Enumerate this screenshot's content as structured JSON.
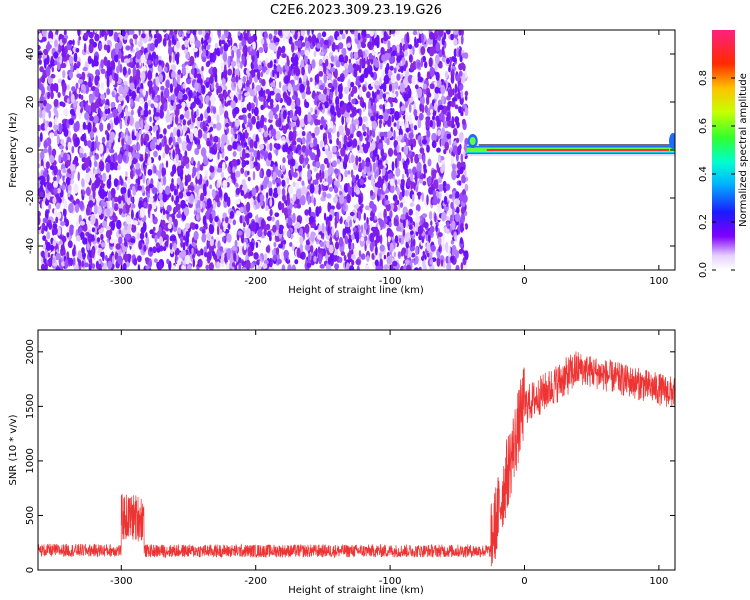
{
  "title": "C2E6.2023.309.23.19.G26",
  "chart_data": [
    {
      "type": "heatmap",
      "title": "",
      "xlabel": "Height of straight line (km)",
      "ylabel": "Frequency (Hz)",
      "xlim": [
        -362,
        112
      ],
      "ylim": [
        -50,
        50
      ],
      "xticks": [
        -300,
        -200,
        -100,
        0,
        100
      ],
      "yticks": [
        -40,
        -20,
        0,
        20,
        40
      ],
      "noise_region_x": [
        -362,
        -43
      ],
      "signal_region_x": [
        -43,
        112
      ],
      "signal_frequency_hz": 0,
      "colorbar": {
        "label": "Normalized spectral amplitude",
        "range": [
          0,
          1
        ],
        "ticks": [
          0.0,
          0.2,
          0.4,
          0.6,
          0.8
        ]
      }
    },
    {
      "type": "line",
      "title": "",
      "xlabel": "Height of straight line (km)",
      "ylabel": "SNR (10 * v/v)",
      "xlim": [
        -362,
        112
      ],
      "ylim": [
        0,
        2200
      ],
      "xticks": [
        -300,
        -200,
        -100,
        0,
        100
      ],
      "yticks": [
        0,
        500,
        1000,
        1500,
        2000
      ],
      "color": "#ee3333",
      "segments": [
        {
          "x_start": -362,
          "x_end": -300,
          "mean": 180,
          "noise": 60
        },
        {
          "x_start": -300,
          "x_end": -283,
          "mean": 480,
          "noise": 220
        },
        {
          "x_start": -283,
          "x_end": -25,
          "mean": 175,
          "noise": 60
        },
        {
          "x_start": -25,
          "x_end": 0,
          "mean": 900,
          "noise": 350
        },
        {
          "x_start": 0,
          "x_end": 40,
          "mean": 1750,
          "noise": 180
        },
        {
          "x_start": 40,
          "x_end": 112,
          "mean": 1700,
          "noise": 150
        }
      ]
    }
  ]
}
